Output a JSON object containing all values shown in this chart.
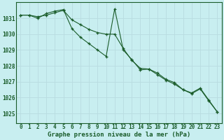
{
  "title": "Graphe pression niveau de la mer (hPa)",
  "background_color": "#c8eef0",
  "grid_color": "#b8dce0",
  "line_color": "#1a5c2a",
  "marker_color": "#1a5c2a",
  "x_ticks": [
    0,
    1,
    2,
    3,
    4,
    5,
    6,
    7,
    8,
    9,
    10,
    11,
    12,
    13,
    14,
    15,
    16,
    17,
    18,
    19,
    20,
    21,
    22,
    23
  ],
  "ylim": [
    1024.4,
    1032.0
  ],
  "yticks": [
    1025,
    1026,
    1027,
    1028,
    1029,
    1030,
    1031
  ],
  "series1": [
    1031.2,
    1031.2,
    1031.1,
    1031.2,
    1031.35,
    1031.5,
    1030.9,
    1030.6,
    1030.3,
    1030.1,
    1030.0,
    1030.0,
    1029.1,
    1028.35,
    1027.85,
    1027.8,
    1027.55,
    1027.15,
    1026.95,
    1026.5,
    1026.3,
    1026.6,
    1025.85,
    1025.1
  ],
  "series2": [
    1031.2,
    1031.2,
    1031.0,
    1031.3,
    1031.45,
    1031.55,
    1030.35,
    1029.8,
    1029.4,
    1029.0,
    1028.6,
    1031.6,
    1029.0,
    1028.4,
    1027.75,
    1027.8,
    1027.45,
    1027.1,
    1026.85,
    1026.5,
    1026.25,
    1026.55,
    1025.8,
    1025.1
  ],
  "title_fontsize": 6.5,
  "tick_fontsize": 5.5,
  "ytick_fontsize": 5.5
}
